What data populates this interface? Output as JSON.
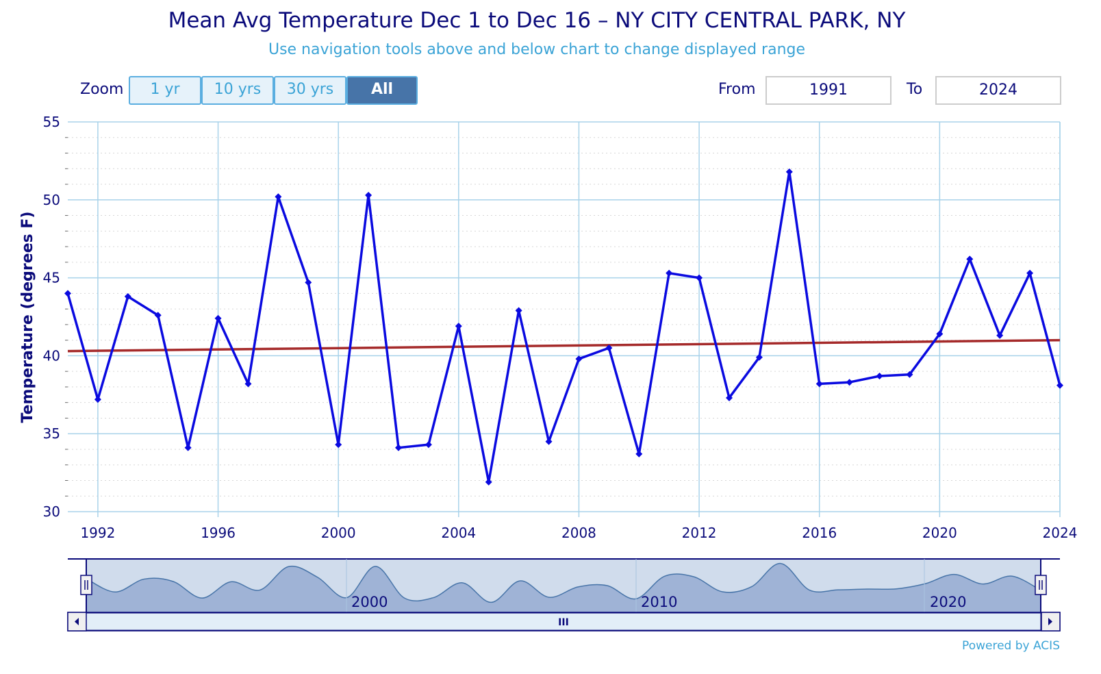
{
  "header": {
    "title": "Mean Avg Temperature Dec 1 to Dec 16 – NY CITY CENTRAL PARK, NY",
    "subtitle": "Use navigation tools above and below chart to change displayed range"
  },
  "zoom": {
    "label": "Zoom",
    "buttons": [
      {
        "label": "1 yr",
        "active": false
      },
      {
        "label": "10 yrs",
        "active": false
      },
      {
        "label": "30 yrs",
        "active": false
      },
      {
        "label": "All",
        "active": true
      }
    ]
  },
  "range": {
    "from_label": "From",
    "from_value": "1991",
    "to_label": "To",
    "to_value": "2024"
  },
  "footer": {
    "credit": "Powered by ACIS"
  },
  "colors": {
    "series": "#0a0ae0",
    "trend": "#a52a2a",
    "grid": "#a8d2ea",
    "text": "#0a0a7a",
    "accent": "#3aa3d6"
  },
  "navigator": {
    "labels": [
      "2000",
      "2010",
      "2020"
    ],
    "scroll_grip": "III"
  },
  "chart_data": {
    "type": "line",
    "title": "Mean Avg Temperature Dec 1 to Dec 16 – NY CITY CENTRAL PARK, NY",
    "ylabel": "Temperature (degrees F)",
    "xlabel": "",
    "xlim": [
      1991,
      2024
    ],
    "ylim": [
      30,
      55
    ],
    "yticks": [
      30,
      35,
      40,
      45,
      50,
      55
    ],
    "xticks": [
      1992,
      1996,
      2000,
      2004,
      2008,
      2012,
      2016,
      2020,
      2024
    ],
    "grid": true,
    "x": [
      1991,
      1992,
      1993,
      1994,
      1995,
      1996,
      1997,
      1998,
      1999,
      2000,
      2001,
      2002,
      2003,
      2004,
      2005,
      2006,
      2007,
      2008,
      2009,
      2010,
      2011,
      2012,
      2013,
      2014,
      2015,
      2016,
      2017,
      2018,
      2019,
      2020,
      2021,
      2022,
      2023,
      2024
    ],
    "series": [
      {
        "values": [
          44.0,
          37.2,
          43.8,
          42.6,
          34.1,
          42.4,
          38.2,
          50.2,
          44.7,
          34.3,
          50.3,
          34.1,
          34.3,
          41.9,
          31.9,
          42.9,
          34.5,
          39.8,
          40.5,
          33.7,
          45.3,
          45.0,
          37.3,
          39.9,
          51.8,
          38.2,
          38.3,
          38.7,
          38.8,
          41.4,
          46.2,
          41.3,
          45.3,
          38.1
        ]
      },
      {
        "values": [
          40.3,
          41.0
        ],
        "x": [
          1991,
          2024
        ]
      }
    ]
  }
}
